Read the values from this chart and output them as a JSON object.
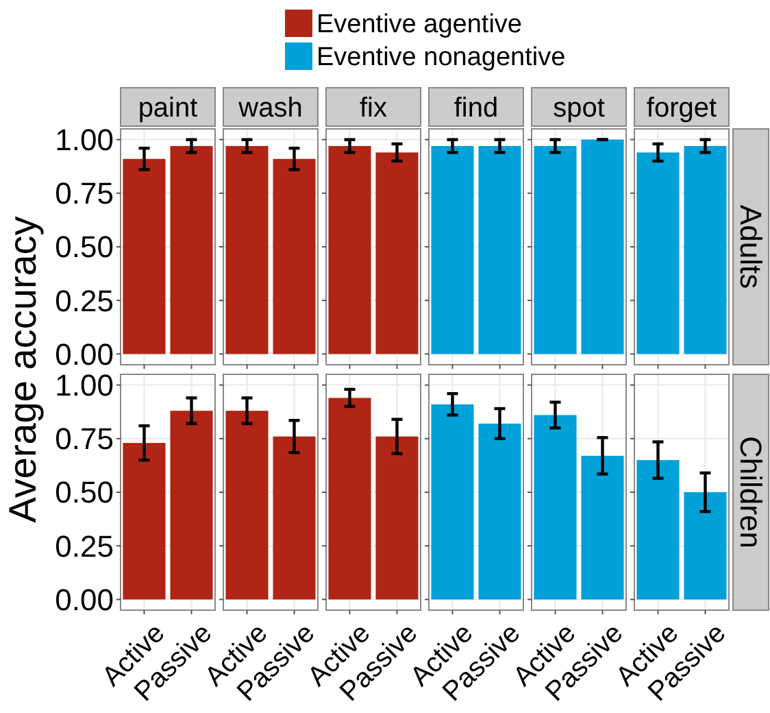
{
  "chart_data": [
    {
      "type": "bar",
      "title": "paint",
      "ylabel": "Average accuracy",
      "categories": [
        "Active",
        "Passive"
      ],
      "series": [
        {
          "name": "Eventive agentive",
          "color": "#b02515",
          "values": [
            0.91,
            0.97
          ],
          "errors": [
            0.05,
            0.03
          ]
        }
      ],
      "ylim": [
        -0.05,
        1.05
      ],
      "yticks": [
        {
          "value": 0,
          "label": "0.00"
        },
        {
          "value": 0.25,
          "label": "0.25"
        },
        {
          "value": 0.5,
          "label": "0.50"
        },
        {
          "value": 0.75,
          "label": "0.75"
        },
        {
          "value": 1,
          "label": "1.00"
        }
      ],
      "grid": true,
      "legend": "top",
      "tick_labels": "y"
    },
    {
      "type": "bar",
      "title": "wash",
      "categories": [
        "Active",
        "Passive"
      ],
      "series": [
        {
          "name": "Eventive agentive",
          "color": "#b02515",
          "values": [
            0.97,
            0.91
          ],
          "errors": [
            0.03,
            0.05
          ]
        }
      ],
      "ylim": [
        -0.05,
        1.05
      ],
      "yticks": [
        0,
        0.25,
        0.5,
        0.75,
        1
      ],
      "grid": true,
      "legend": "top",
      "tick_labels": false
    },
    {
      "type": "bar",
      "title": "fix",
      "categories": [
        "Active",
        "Passive"
      ],
      "series": [
        {
          "name": "Eventive agentive",
          "color": "#b02515",
          "values": [
            0.97,
            0.94
          ],
          "errors": [
            0.03,
            0.04
          ]
        }
      ],
      "ylim": [
        -0.05,
        1.05
      ],
      "yticks": [
        0,
        0.25,
        0.5,
        0.75,
        1
      ],
      "grid": true,
      "legend": "top",
      "tick_labels": false
    },
    {
      "type": "bar",
      "title": "find",
      "categories": [
        "Active",
        "Passive"
      ],
      "series": [
        {
          "name": "Eventive nonagentive",
          "color": "#00a0d8",
          "values": [
            0.97,
            0.97
          ],
          "errors": [
            0.03,
            0.03
          ]
        }
      ],
      "ylim": [
        -0.05,
        1.05
      ],
      "yticks": [
        0,
        0.25,
        0.5,
        0.75,
        1
      ],
      "grid": true,
      "legend": "top",
      "tick_labels": false
    },
    {
      "type": "bar",
      "title": "spot",
      "categories": [
        "Active",
        "Passive"
      ],
      "series": [
        {
          "name": "Eventive nonagentive",
          "color": "#00a0d8",
          "values": [
            0.97,
            1.0
          ],
          "errors": [
            0.03,
            0
          ]
        }
      ],
      "ylim": [
        -0.05,
        1.05
      ],
      "yticks": [
        0,
        0.25,
        0.5,
        0.75,
        1
      ],
      "grid": true,
      "legend": "top",
      "tick_labels": false
    },
    {
      "type": "bar",
      "title": "forget",
      "annotations": [
        "Adults"
      ],
      "categories": [
        "Active",
        "Passive"
      ],
      "series": [
        {
          "name": "Eventive nonagentive",
          "color": "#00a0d8",
          "values": [
            0.94,
            0.97
          ],
          "errors": [
            0.04,
            0.03
          ]
        }
      ],
      "ylim": [
        -0.05,
        1.05
      ],
      "yticks": [
        0,
        0.25,
        0.5,
        0.75,
        1
      ],
      "grid": true,
      "legend": "top",
      "tick_labels": false
    },
    {
      "type": "bar",
      "categories": [
        "Active",
        "Passive"
      ],
      "series": [
        {
          "name": "Eventive agentive",
          "color": "#b02515",
          "values": [
            0.73,
            0.88
          ],
          "errors": [
            0.08,
            0.06
          ]
        }
      ],
      "ylim": [
        -0.05,
        1.05
      ],
      "yticks": [
        {
          "value": 0,
          "label": "0.00"
        },
        {
          "value": 0.25,
          "label": "0.25"
        },
        {
          "value": 0.5,
          "label": "0.50"
        },
        {
          "value": 0.75,
          "label": "0.75"
        },
        {
          "value": 1,
          "label": "1.00"
        }
      ],
      "grid": true,
      "legend": "top"
    },
    {
      "type": "bar",
      "categories": [
        "Active",
        "Passive"
      ],
      "series": [
        {
          "name": "Eventive agentive",
          "color": "#b02515",
          "values": [
            0.88,
            0.76
          ],
          "errors": [
            0.06,
            0.075
          ]
        }
      ],
      "ylim": [
        -0.05,
        1.05
      ],
      "yticks": [
        0,
        0.25,
        0.5,
        0.75,
        1
      ],
      "grid": true,
      "legend": "top",
      "tick_labels": "x"
    },
    {
      "type": "bar",
      "categories": [
        "Active",
        "Passive"
      ],
      "series": [
        {
          "name": "Eventive agentive",
          "color": "#b02515",
          "values": [
            0.94,
            0.76
          ],
          "errors": [
            0.04,
            0.08
          ]
        }
      ],
      "ylim": [
        -0.05,
        1.05
      ],
      "yticks": [
        0,
        0.25,
        0.5,
        0.75,
        1
      ],
      "grid": true,
      "legend": "top",
      "tick_labels": "x"
    },
    {
      "type": "bar",
      "categories": [
        "Active",
        "Passive"
      ],
      "series": [
        {
          "name": "Eventive nonagentive",
          "color": "#00a0d8",
          "values": [
            0.91,
            0.82
          ],
          "errors": [
            0.05,
            0.07
          ]
        }
      ],
      "ylim": [
        -0.05,
        1.05
      ],
      "yticks": [
        0,
        0.25,
        0.5,
        0.75,
        1
      ],
      "grid": true,
      "legend": "top",
      "tick_labels": "x"
    },
    {
      "type": "bar",
      "categories": [
        "Active",
        "Passive"
      ],
      "series": [
        {
          "name": "Eventive nonagentive",
          "color": "#00a0d8",
          "values": [
            0.86,
            0.67
          ],
          "errors": [
            0.06,
            0.085
          ]
        }
      ],
      "ylim": [
        -0.05,
        1.05
      ],
      "yticks": [
        0,
        0.25,
        0.5,
        0.75,
        1
      ],
      "grid": true,
      "legend": "top",
      "tick_labels": "x"
    },
    {
      "type": "bar",
      "annotations": [
        "Children"
      ],
      "categories": [
        "Active",
        "Passive"
      ],
      "series": [
        {
          "name": "Eventive nonagentive",
          "color": "#00a0d8",
          "values": [
            0.65,
            0.5
          ],
          "errors": [
            0.085,
            0.09
          ]
        }
      ],
      "ylim": [
        -0.05,
        1.05
      ],
      "yticks": [
        0,
        0.25,
        0.5,
        0.75,
        1
      ],
      "grid": true,
      "legend": "top",
      "tick_labels": "x"
    }
  ]
}
